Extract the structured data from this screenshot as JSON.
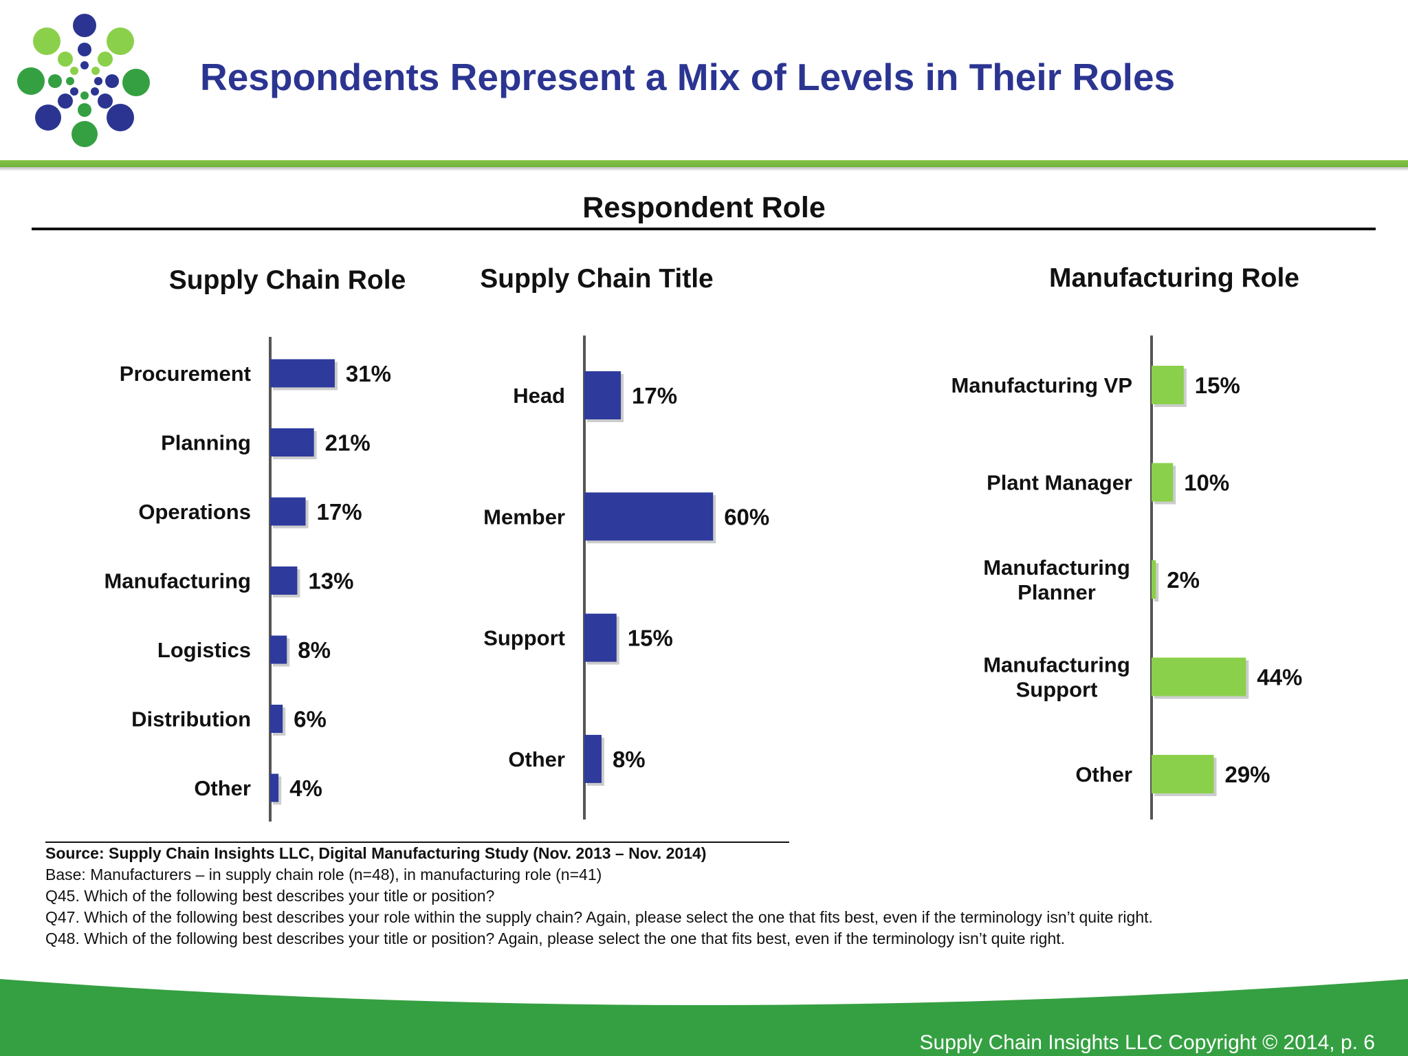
{
  "slide": {
    "title": "Respondents Represent a Mix of Levels in Their Roles",
    "chart_heading": "Respondent Role",
    "copyright": "Supply Chain Insights LLC Copyright © 2014, p. 6"
  },
  "colors": {
    "title": "#2b3591",
    "blue_bar": "#2e3a9c",
    "green_bar": "#8bd04a",
    "accent_green": "#6fb43b",
    "footer_green": "#35a042"
  },
  "chart_data": [
    {
      "type": "bar",
      "orientation": "horizontal",
      "title": "Supply Chain Role",
      "categories": [
        "Procurement",
        "Planning",
        "Operations",
        "Manufacturing",
        "Logistics",
        "Distribution",
        "Other"
      ],
      "values": [
        31,
        21,
        17,
        13,
        8,
        6,
        4
      ],
      "value_labels": [
        "31%",
        "21%",
        "17%",
        "13%",
        "8%",
        "6%",
        "4%"
      ],
      "unit": "%",
      "color": "#2e3a9c"
    },
    {
      "type": "bar",
      "orientation": "horizontal",
      "title": "Supply Chain Title",
      "categories": [
        "Head",
        "Member",
        "Support",
        "Other"
      ],
      "values": [
        17,
        60,
        15,
        8
      ],
      "value_labels": [
        "17%",
        "60%",
        "15%",
        "8%"
      ],
      "unit": "%",
      "color": "#2e3a9c"
    },
    {
      "type": "bar",
      "orientation": "horizontal",
      "title": "Manufacturing Role",
      "categories": [
        [
          "Manufacturing VP"
        ],
        [
          "Plant Manager"
        ],
        [
          "Manufacturing",
          "Planner"
        ],
        [
          "Manufacturing",
          "Support"
        ],
        [
          "Other"
        ]
      ],
      "values": [
        15,
        10,
        2,
        44,
        29
      ],
      "value_labels": [
        "15%",
        "10%",
        "2%",
        "44%",
        "29%"
      ],
      "unit": "%",
      "color": "#8bd04a"
    }
  ],
  "footnotes": {
    "source": "Source:  Supply Chain Insights LLC, Digital Manufacturing Study (Nov. 2013 – Nov. 2014)",
    "base": "Base: Manufacturers – in supply chain role (n=48), in manufacturing role (n=41)",
    "q45": "Q45. Which of the following best describes your title or position?",
    "q47": "Q47. Which of the following best describes your role within the supply chain?  Again, please select the one that fits best, even if the terminology isn’t quite right.",
    "q48": "Q48. Which of the following best describes your title or position?  Again, please select the one that fits best, even if the terminology isn’t quite right."
  }
}
